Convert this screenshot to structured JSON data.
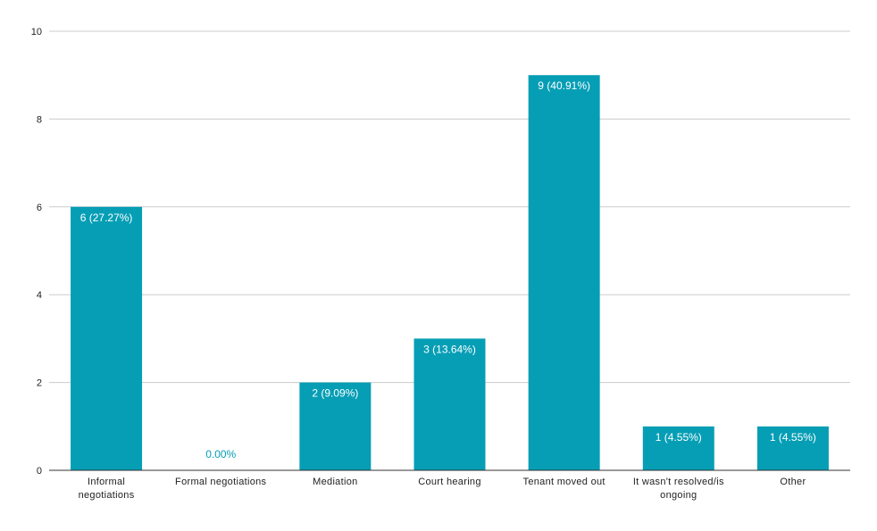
{
  "chart_data": {
    "type": "bar",
    "title": "",
    "xlabel": "",
    "ylabel": "",
    "ylim": [
      0,
      10
    ],
    "yticks": [
      0,
      2,
      4,
      6,
      8,
      10
    ],
    "grid": true,
    "legend": "none",
    "categories": [
      [
        "Informal",
        "negotiations"
      ],
      [
        "Formal negotiations"
      ],
      [
        "Mediation"
      ],
      [
        "Court hearing"
      ],
      [
        "Tenant moved out"
      ],
      [
        "It wasn't resolved/is",
        "ongoing"
      ],
      [
        "Other"
      ]
    ],
    "values": [
      6,
      0,
      2,
      3,
      9,
      1,
      1
    ],
    "data_labels": [
      "6 (27.27%)",
      "0.00%",
      "2 (9.09%)",
      "3 (13.64%)",
      "9 (40.91%)",
      "1 (4.55%)",
      "1 (4.55%)"
    ],
    "colors": {
      "bar": "#069eb5",
      "grid": "#cccccc",
      "axis": "#333333",
      "text": "#222222"
    }
  }
}
